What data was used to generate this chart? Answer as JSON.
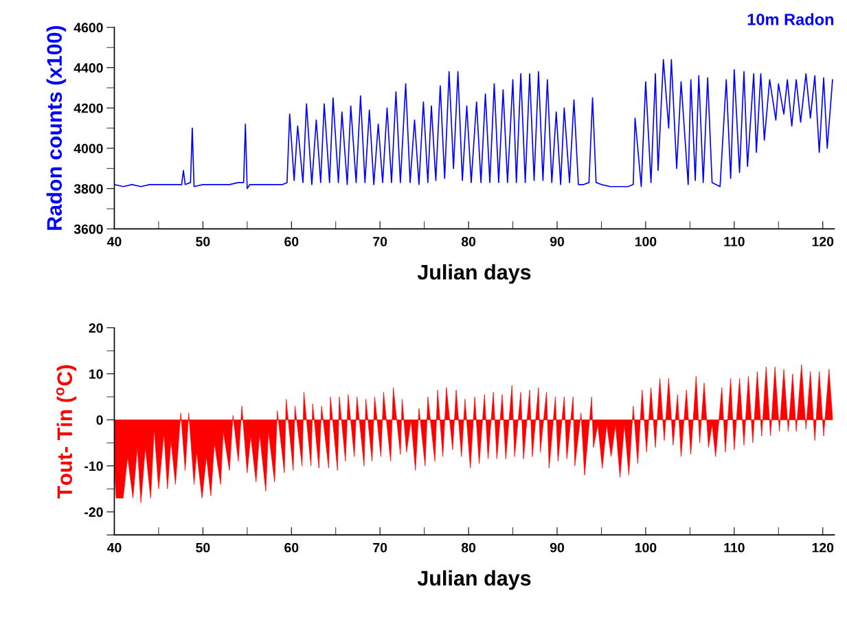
{
  "chart_data": [
    {
      "type": "line",
      "xlabel": "Julian days",
      "ylabel": "Radon counts (x100)",
      "xlim": [
        40,
        121.3
      ],
      "xticks": [
        40,
        50,
        60,
        70,
        80,
        90,
        100,
        110,
        120
      ],
      "ylim": [
        3600,
        4600
      ],
      "yticks": [
        3600,
        3800,
        4000,
        4200,
        4400,
        4600
      ],
      "grid": false,
      "legend": false,
      "marker": "none",
      "line_style": "solid",
      "series": [
        {
          "name": "10m Radon",
          "color": "#0000ff",
          "x": [
            40,
            41,
            42,
            43,
            44,
            45,
            46,
            47,
            47.6,
            47.8,
            48.0,
            48.6,
            48.8,
            49.0,
            50,
            51,
            52,
            53,
            54,
            54.6,
            54.8,
            55.0,
            55.3,
            56,
            57,
            58,
            59,
            59.5,
            59.8,
            60.3,
            60.7,
            61.3,
            61.7,
            62.3,
            62.8,
            63.3,
            63.7,
            64.3,
            64.7,
            65.3,
            65.7,
            66.3,
            66.7,
            67.3,
            67.8,
            68.3,
            68.8,
            69.3,
            69.8,
            70.3,
            70.8,
            71.3,
            71.8,
            72.3,
            72.9,
            73.4,
            73.9,
            74.4,
            74.9,
            75.4,
            75.8,
            76.3,
            76.8,
            77.3,
            77.8,
            78.3,
            78.8,
            79.3,
            79.8,
            80.3,
            80.9,
            81.4,
            81.9,
            82.4,
            82.9,
            83.4,
            83.9,
            84.4,
            85.0,
            85.4,
            85.9,
            86.4,
            86.9,
            87.4,
            87.9,
            88.4,
            88.9,
            89.4,
            89.9,
            90.4,
            90.8,
            91.4,
            91.9,
            92.4,
            93,
            93.6,
            94.0,
            94.4,
            95,
            96,
            97,
            98,
            98.6,
            98.8,
            99.5,
            100.0,
            100.6,
            101.1,
            101.4,
            102.0,
            102.6,
            102.9,
            103.5,
            104.0,
            104.8,
            105.1,
            105.6,
            106.0,
            106.5,
            107.0,
            107.5,
            108.4,
            109.1,
            109.6,
            110.0,
            110.6,
            111.1,
            111.5,
            112.2,
            112.5,
            113.0,
            113.4,
            114.0,
            114.7,
            115.0,
            115.6,
            116.0,
            116.5,
            117.0,
            117.5,
            118.1,
            118.6,
            119.1,
            119.6,
            120.1,
            120.5,
            121.1
          ],
          "values": [
            3820,
            3810,
            3820,
            3810,
            3820,
            3820,
            3820,
            3820,
            3820,
            3890,
            3820,
            3830,
            4100,
            3810,
            3820,
            3820,
            3820,
            3820,
            3830,
            3830,
            4120,
            3800,
            3820,
            3820,
            3820,
            3820,
            3820,
            3830,
            4170,
            3840,
            4110,
            3830,
            4220,
            3820,
            4140,
            3830,
            4220,
            3830,
            4250,
            3830,
            4180,
            3820,
            4210,
            3830,
            4260,
            3830,
            4190,
            3820,
            4120,
            3830,
            4200,
            3830,
            4280,
            3830,
            4320,
            3830,
            4140,
            3820,
            4230,
            3830,
            4210,
            3840,
            4310,
            3850,
            4380,
            3900,
            4380,
            3840,
            4210,
            3830,
            4230,
            3830,
            4270,
            3830,
            4320,
            3830,
            4290,
            3830,
            4340,
            3830,
            4370,
            3830,
            4370,
            3840,
            4380,
            3840,
            4340,
            3830,
            4180,
            3820,
            4200,
            3830,
            4240,
            3820,
            3820,
            3830,
            4250,
            3830,
            3820,
            3810,
            3810,
            3810,
            3820,
            4150,
            3810,
            4330,
            3830,
            4370,
            3890,
            4440,
            4100,
            4440,
            3900,
            4330,
            3820,
            4340,
            3840,
            4360,
            3830,
            4350,
            3830,
            3810,
            4340,
            3850,
            4390,
            3880,
            4380,
            3910,
            4370,
            3980,
            4370,
            4040,
            4340,
            4140,
            4320,
            4170,
            4340,
            4110,
            4340,
            4130,
            4370,
            4150,
            4360,
            3980,
            4350,
            4000,
            4340
          ]
        }
      ]
    },
    {
      "type": "area",
      "xlabel": "Julian days",
      "ylabel": "Tout- Tin ($^{o}$C)",
      "xlim": [
        40,
        121.3
      ],
      "xticks": [
        40,
        50,
        60,
        70,
        80,
        90,
        100,
        110,
        120
      ],
      "ylim": [
        -25,
        20
      ],
      "yticks": [
        {
          "value": -25,
          "label": null
        },
        -20,
        -10,
        0,
        10,
        20
      ],
      "grid": false,
      "legend": false,
      "series": [
        {
          "color": "#ff0000",
          "x": [
            40.0,
            40.2,
            41.0,
            41.5,
            42.1,
            42.6,
            43.0,
            43.5,
            44.1,
            44.5,
            45.0,
            45.6,
            46.0,
            46.4,
            46.9,
            47.5,
            48.0,
            48.4,
            49.0,
            49.3,
            49.9,
            50.4,
            50.9,
            51.3,
            52.0,
            52.3,
            53.0,
            53.4,
            54.0,
            54.4,
            55.0,
            55.4,
            56.0,
            56.4,
            57.1,
            57.4,
            58.1,
            58.4,
            59.2,
            59.4,
            60.2,
            60.4,
            61.2,
            61.4,
            62.2,
            62.4,
            63.1,
            63.4,
            64.2,
            64.4,
            65.2,
            65.4,
            66.1,
            66.4,
            67.1,
            67.4,
            68.2,
            68.4,
            69.1,
            69.4,
            70.1,
            70.4,
            71.2,
            71.5,
            72.3,
            72.5,
            73.0,
            73.5,
            74.0,
            74.4,
            75.1,
            75.4,
            76.2,
            76.5,
            77.1,
            77.5,
            78.2,
            78.6,
            79.2,
            79.6,
            80.2,
            80.7,
            81.2,
            81.8,
            82.2,
            82.8,
            83.2,
            83.8,
            84.2,
            84.9,
            85.2,
            85.9,
            86.2,
            86.9,
            87.2,
            87.9,
            88.1,
            88.8,
            89.1,
            89.8,
            90.1,
            90.8,
            91.1,
            91.8,
            92.0,
            92.7,
            93.1,
            93.9,
            94.1,
            94.6,
            95.1,
            95.6,
            96.1,
            96.6,
            97.1,
            97.6,
            98.1,
            98.6,
            99.1,
            99.6,
            100.1,
            100.6,
            101.1,
            101.6,
            102.1,
            102.6,
            103.1,
            103.6,
            104.0,
            104.6,
            105.1,
            105.7,
            106.1,
            106.6,
            107.1,
            107.5,
            107.9,
            108.6,
            109.0,
            109.6,
            110.0,
            110.6,
            111.1,
            111.6,
            112.1,
            112.6,
            113.1,
            113.6,
            114.1,
            114.6,
            115.1,
            115.6,
            116.1,
            116.6,
            117.0,
            117.6,
            118.1,
            118.6,
            119.1,
            119.6,
            120.1,
            120.7,
            121.1
          ],
          "values": [
            -10,
            -17,
            -17,
            -8,
            -17,
            -6,
            -18,
            -6,
            -17,
            -2,
            -15,
            -3,
            -15,
            -4.5,
            -14,
            1.5,
            -11,
            1.5,
            -14,
            -7,
            -17,
            -8,
            -16.5,
            -5,
            -14,
            -2.5,
            -11,
            1,
            -9,
            3,
            -11.5,
            -3.5,
            -13.5,
            -3,
            -15.5,
            -2.5,
            -13.5,
            2,
            -11.5,
            4.5,
            -11,
            3,
            -10,
            6,
            -10,
            3.5,
            -10.5,
            3,
            -10.5,
            5,
            -11,
            5,
            -9,
            5.5,
            -8,
            5,
            -10,
            4.5,
            -9,
            5,
            -8,
            6,
            -9,
            7,
            -7.5,
            4.5,
            -7,
            0,
            -11,
            2.5,
            -10,
            5,
            -9,
            6.5,
            -8,
            7,
            -6.5,
            6.5,
            -8,
            4.5,
            -10.5,
            5,
            -9.5,
            5.5,
            -8.5,
            6,
            -8.5,
            5.5,
            -8.5,
            7.5,
            -8,
            6,
            -8.5,
            6.5,
            -8,
            7,
            -7,
            6,
            -10.5,
            5,
            -9,
            5,
            -8.5,
            5,
            -10,
            1.5,
            -12,
            5,
            -6,
            -1,
            -10.5,
            -1,
            -8,
            -1,
            -12.5,
            -1,
            -12,
            3,
            -9.5,
            6.5,
            -7,
            7,
            -6,
            9,
            -4.5,
            9,
            -5.5,
            5.5,
            -8,
            6.5,
            -7.5,
            9.5,
            -5,
            8,
            -6,
            -1,
            -8,
            7,
            -7,
            9,
            -6.5,
            9,
            -5.5,
            9.5,
            -5,
            10.5,
            -3.5,
            11.5,
            -3.5,
            11.5,
            -2.5,
            11,
            -2.5,
            10,
            -2.5,
            12,
            -2,
            10.5,
            -4.5,
            10.5,
            -3.5,
            11,
            0.5
          ]
        }
      ]
    }
  ]
}
